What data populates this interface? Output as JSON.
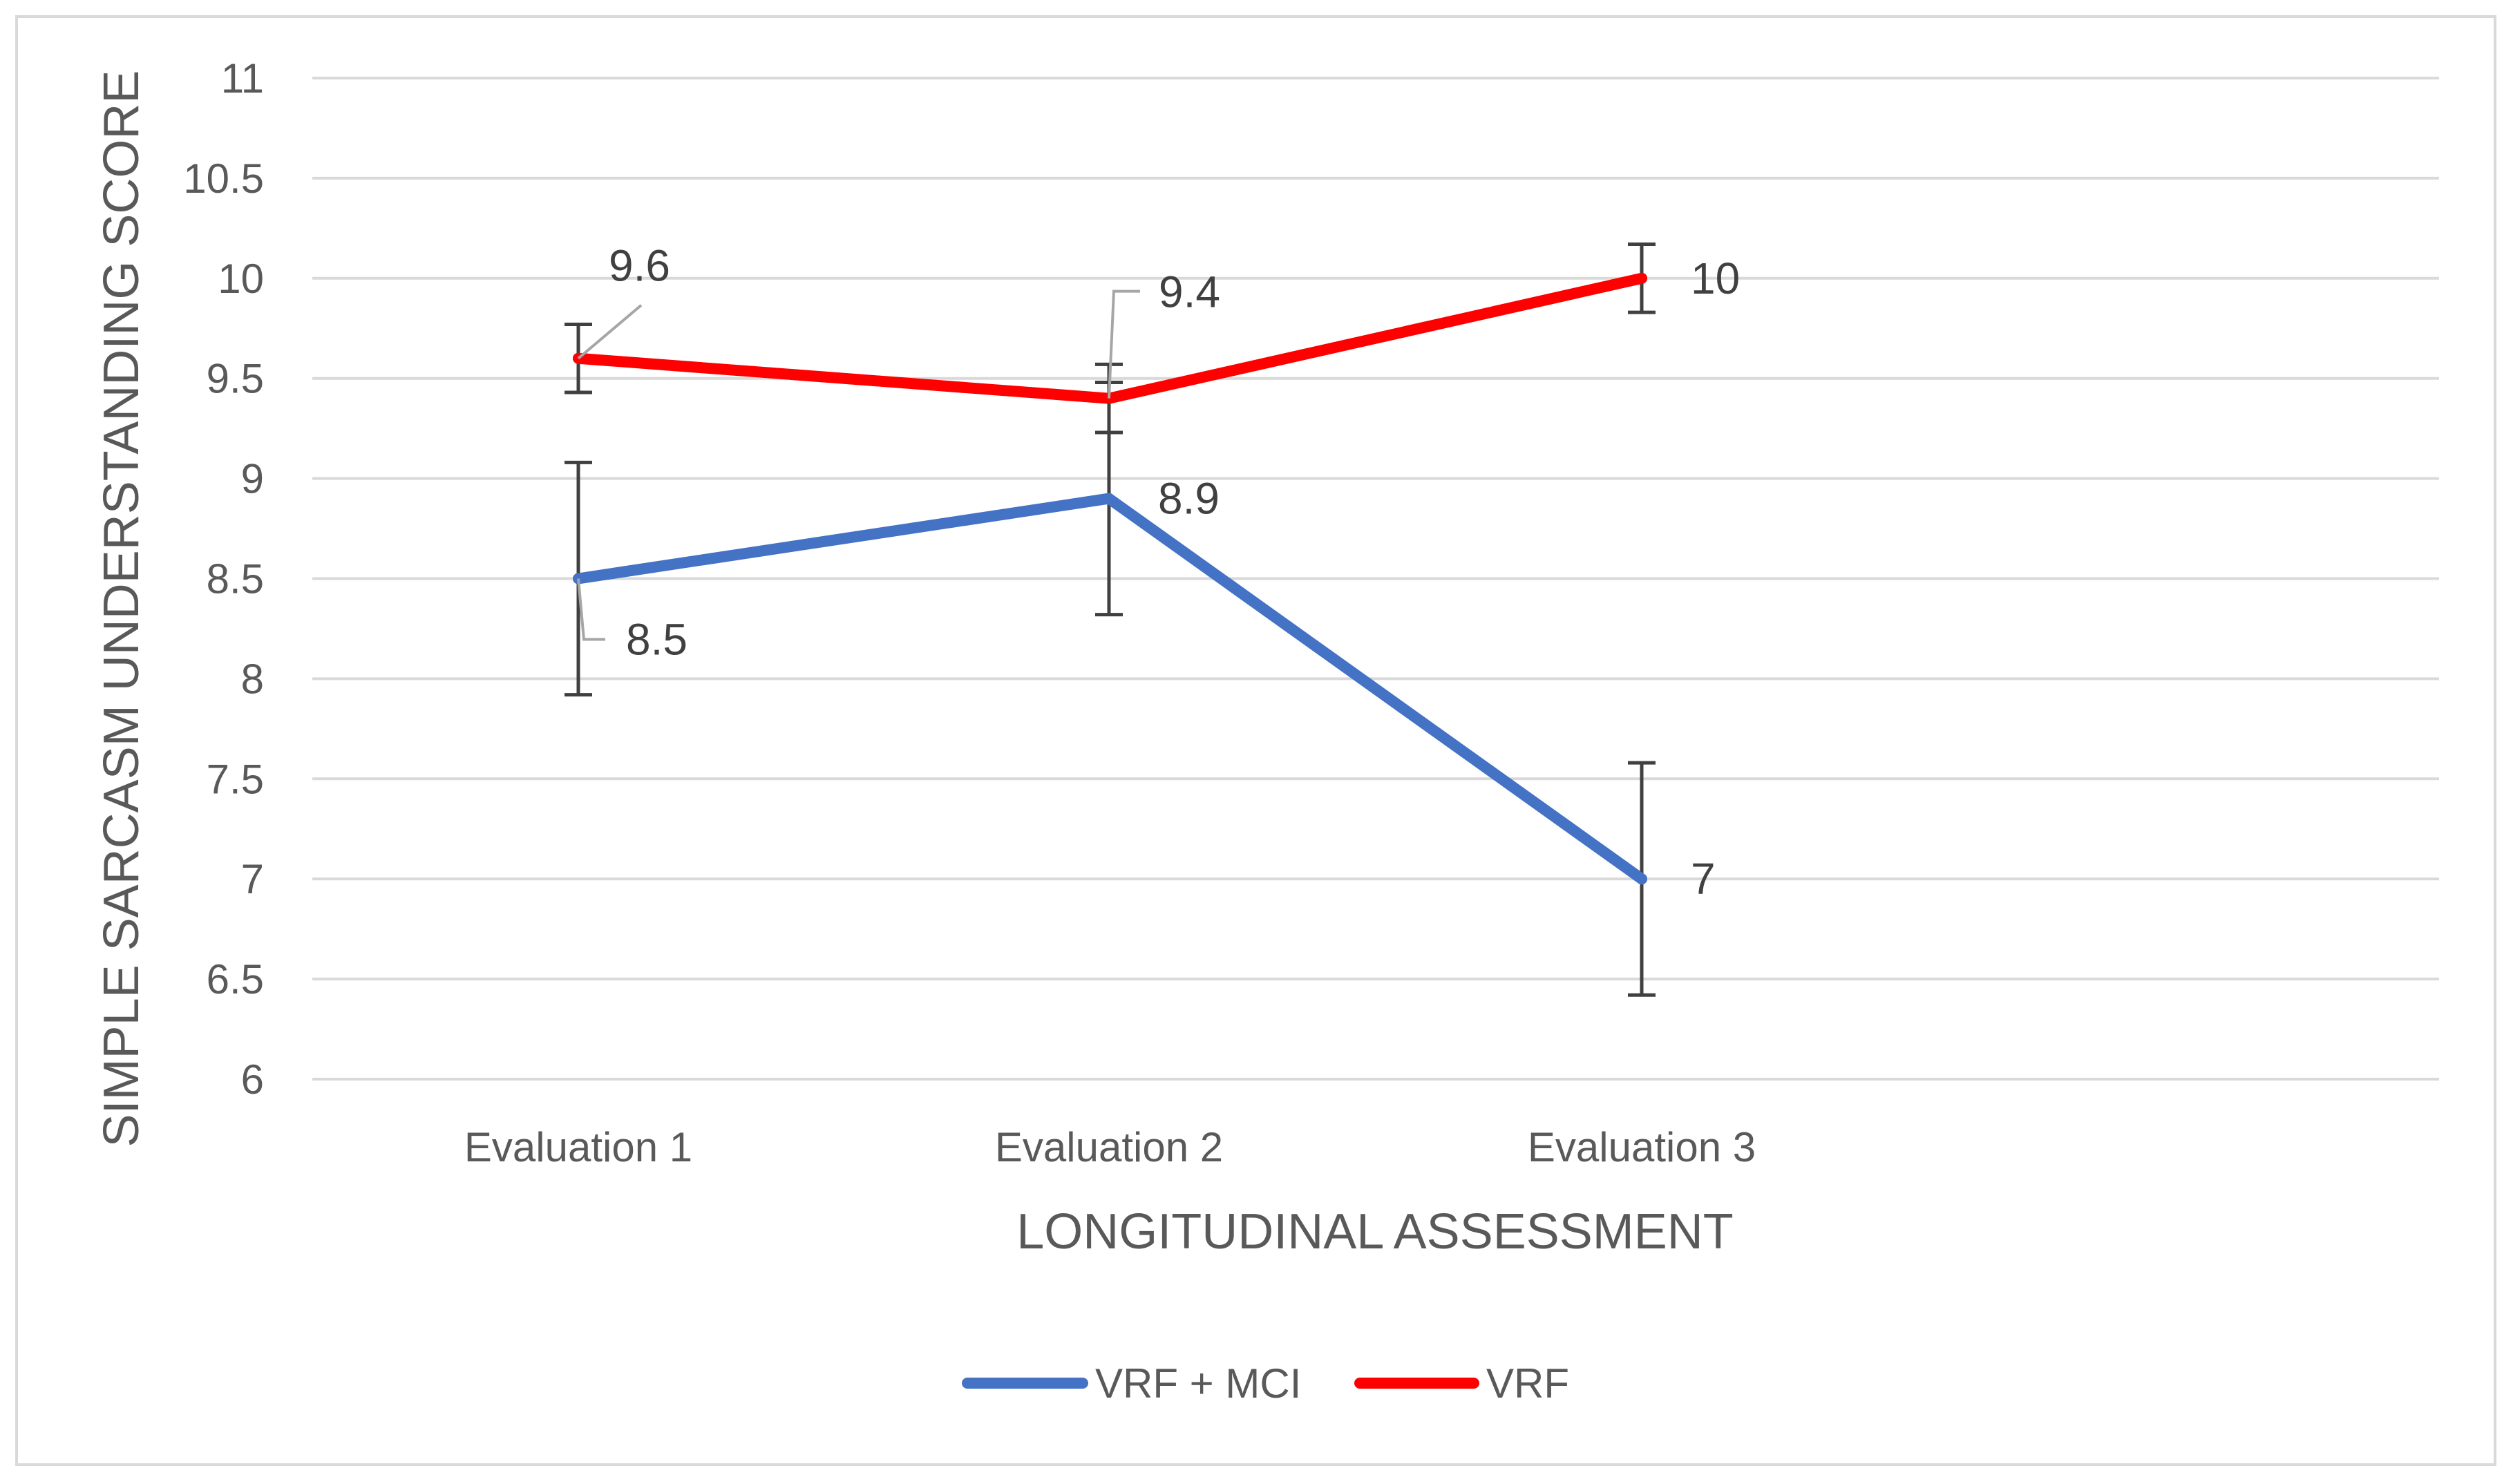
{
  "chart_data": {
    "type": "line",
    "title": "",
    "xlabel": "LONGITUDINAL ASSESSMENT",
    "ylabel": "SIMPLE SARCASM UNDERSTANDING SCORE",
    "categories": [
      "Evaluation 1",
      "Evaluation 2",
      "Evaluation 3"
    ],
    "ylim": [
      6,
      11
    ],
    "ytick_step": 0.5,
    "yticks": [
      "6",
      "6.5",
      "7",
      "7.5",
      "8",
      "8.5",
      "9",
      "9.5",
      "10",
      "10.5",
      "11"
    ],
    "grid": true,
    "legend_position": "bottom",
    "series": [
      {
        "name": "VRF + MCI",
        "color": "#4472c4",
        "values": [
          8.5,
          8.9,
          7
        ],
        "error": [
          0.58,
          0.58,
          0.58
        ],
        "labels": [
          "8.5",
          "8.9",
          "7"
        ]
      },
      {
        "name": "VRF",
        "color": "#ff0000",
        "values": [
          9.6,
          9.4,
          10
        ],
        "error": [
          0.17,
          0.17,
          0.17
        ],
        "labels": [
          "9.6",
          "9.4",
          "10"
        ]
      }
    ],
    "colors": {
      "grid": "#d9d9d9",
      "errorbar": "#404040",
      "leader": "#a6a6a6"
    }
  }
}
